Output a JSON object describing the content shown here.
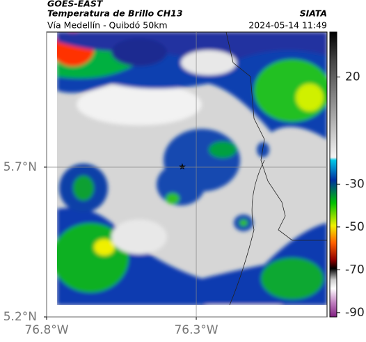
{
  "header": {
    "satellite": "GOES-EAST",
    "title": "Temperatura de Brillo CH13",
    "source": "SIATA",
    "route": "Vía Medellín - Quibdó 50km",
    "datetime": "2024-05-14 11:49"
  },
  "map": {
    "xlim": [
      -76.8,
      -75.863
    ],
    "ylim": [
      5.2,
      6.151
    ],
    "xticks": [
      {
        "value": -76.8,
        "label": "76.8°W"
      },
      {
        "value": -76.3,
        "label": "76.3°W"
      }
    ],
    "yticks": [
      {
        "value": 5.2,
        "label": "5.2°N"
      },
      {
        "value": 5.7,
        "label": "5.7°N"
      }
    ],
    "grid": true
  },
  "colorbar": {
    "lim": [
      -92,
      41
    ],
    "ticks": [
      20,
      -30,
      -50,
      -70,
      -90
    ]
  }
}
